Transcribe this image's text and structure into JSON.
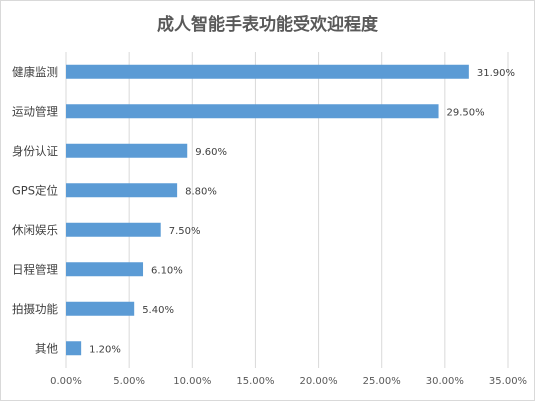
{
  "chart_data": {
    "type": "bar",
    "orientation": "horizontal",
    "title": "成人智能手表功能受欢迎程度",
    "categories": [
      "健康监测",
      "运动管理",
      "身份认证",
      "GPS定位",
      "休闲娱乐",
      "日程管理",
      "拍摄功能",
      "其他"
    ],
    "values": [
      31.9,
      29.5,
      9.6,
      8.8,
      7.5,
      6.1,
      5.4,
      1.2
    ],
    "value_labels": [
      "31.90%",
      "29.50%",
      "9.60%",
      "8.80%",
      "7.50%",
      "6.10%",
      "5.40%",
      "1.20%"
    ],
    "xlim": [
      0,
      35
    ],
    "xticks": [
      0,
      5,
      10,
      15,
      20,
      25,
      30,
      35
    ],
    "xtick_labels": [
      "0.00%",
      "5.00%",
      "10.00%",
      "15.00%",
      "20.00%",
      "25.00%",
      "30.00%",
      "35.00%"
    ],
    "grid": true,
    "bar_color": "#5b9bd5",
    "xlabel": "",
    "ylabel": ""
  }
}
